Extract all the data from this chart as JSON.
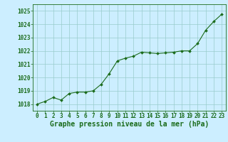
{
  "x": [
    0,
    1,
    2,
    3,
    4,
    5,
    6,
    7,
    8,
    9,
    10,
    11,
    12,
    13,
    14,
    15,
    16,
    17,
    18,
    19,
    20,
    21,
    22,
    23
  ],
  "y": [
    1018.0,
    1018.2,
    1018.5,
    1018.3,
    1018.8,
    1018.9,
    1018.9,
    1019.0,
    1019.5,
    1020.3,
    1021.25,
    1021.45,
    1021.6,
    1021.9,
    1021.85,
    1021.8,
    1021.85,
    1021.9,
    1022.0,
    1022.0,
    1022.55,
    1023.55,
    1024.2,
    1024.75
  ],
  "line_color": "#1a6b1a",
  "marker": "D",
  "marker_size": 2.0,
  "bg_color": "#cceeff",
  "grid_color": "#99cccc",
  "xlabel": "Graphe pression niveau de la mer (hPa)",
  "xlabel_color": "#1a6b1a",
  "xlabel_fontsize": 7,
  "tick_color": "#1a6b1a",
  "tick_fontsize": 5.5,
  "ylim": [
    1017.5,
    1025.5
  ],
  "yticks": [
    1018,
    1019,
    1020,
    1021,
    1022,
    1023,
    1024,
    1025
  ],
  "xlim": [
    -0.5,
    23.5
  ],
  "xticks": [
    0,
    1,
    2,
    3,
    4,
    5,
    6,
    7,
    8,
    9,
    10,
    11,
    12,
    13,
    14,
    15,
    16,
    17,
    18,
    19,
    20,
    21,
    22,
    23
  ]
}
